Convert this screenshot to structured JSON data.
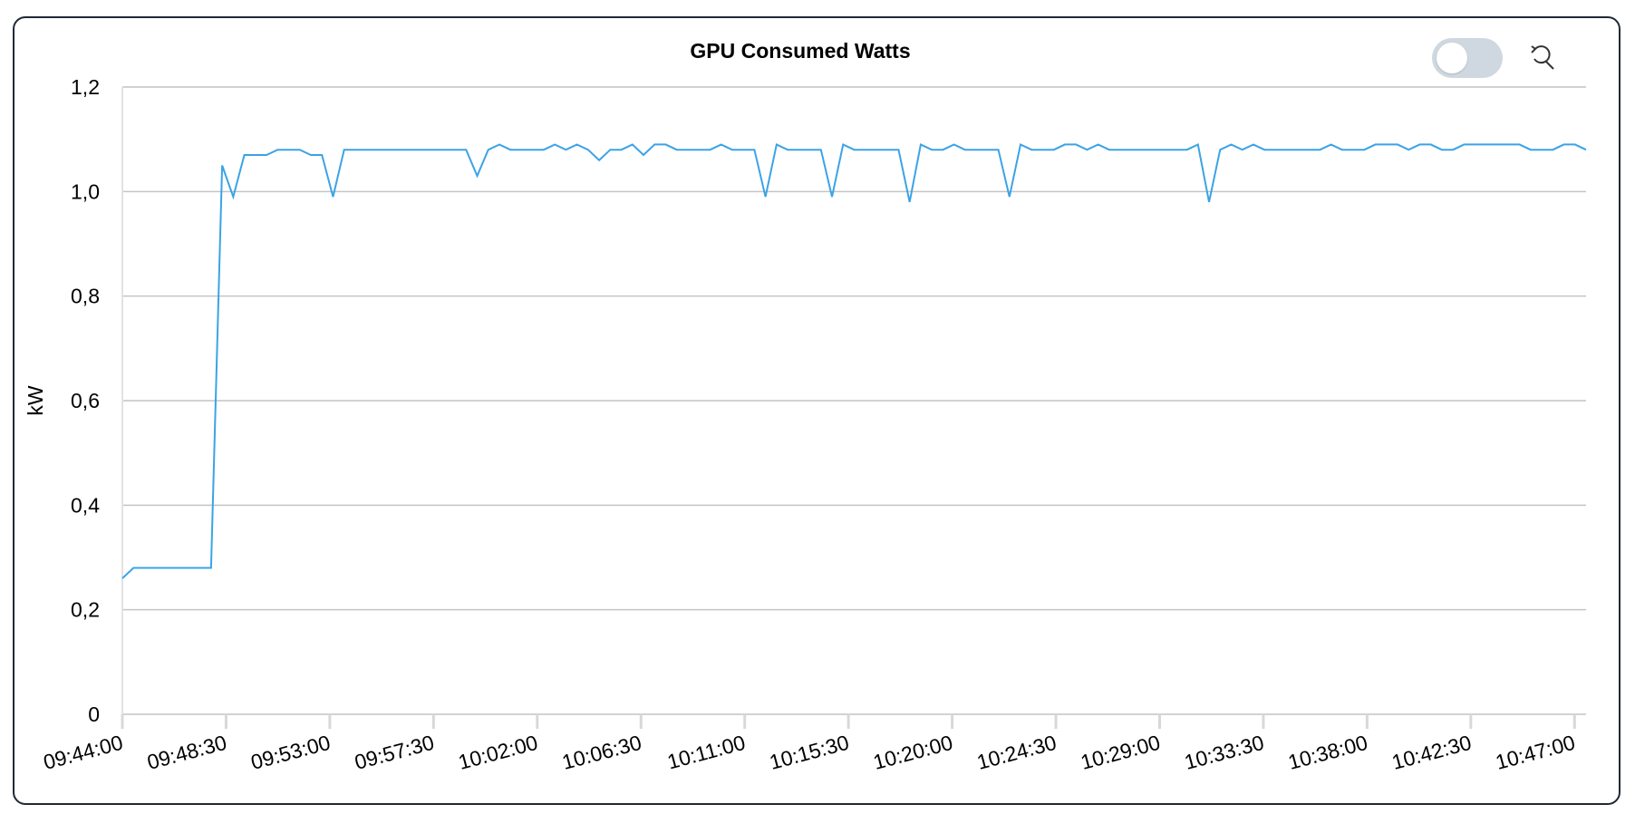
{
  "chart_data": {
    "type": "line",
    "title": "GPU Consumed Watts",
    "xlabel": "",
    "ylabel": "kW",
    "ylim": [
      0,
      1.2
    ],
    "y_ticks": [
      "0",
      "0,2",
      "0,4",
      "0,6",
      "0,8",
      "1,0",
      "1,2"
    ],
    "y_tick_values": [
      0,
      0.2,
      0.4,
      0.6,
      0.8,
      1.0,
      1.2
    ],
    "x_tick_labels": [
      "09:44:00",
      "09:48:30",
      "09:53:00",
      "09:57:30",
      "10:02:00",
      "10:06:30",
      "10:11:00",
      "10:15:30",
      "10:20:00",
      "10:24:30",
      "10:29:00",
      "10:33:30",
      "10:38:00",
      "10:42:30",
      "10:47:00"
    ],
    "x_range": [
      "09:44:00",
      "10:47:30"
    ],
    "grid": true,
    "line_color": "#3ba3e6",
    "series": [
      {
        "values": [
          0.26,
          0.28,
          0.28,
          0.28,
          0.28,
          0.28,
          0.28,
          0.28,
          0.28,
          1.05,
          0.99,
          1.07,
          1.07,
          1.07,
          1.08,
          1.08,
          1.08,
          1.07,
          1.07,
          0.99,
          1.08,
          1.08,
          1.08,
          1.08,
          1.08,
          1.08,
          1.08,
          1.08,
          1.08,
          1.08,
          1.08,
          1.08,
          1.03,
          1.08,
          1.09,
          1.08,
          1.08,
          1.08,
          1.08,
          1.09,
          1.08,
          1.09,
          1.08,
          1.06,
          1.08,
          1.08,
          1.09,
          1.07,
          1.09,
          1.09,
          1.08,
          1.08,
          1.08,
          1.08,
          1.09,
          1.08,
          1.08,
          1.08,
          0.99,
          1.09,
          1.08,
          1.08,
          1.08,
          1.08,
          0.99,
          1.09,
          1.08,
          1.08,
          1.08,
          1.08,
          1.08,
          0.98,
          1.09,
          1.08,
          1.08,
          1.09,
          1.08,
          1.08,
          1.08,
          1.08,
          0.99,
          1.09,
          1.08,
          1.08,
          1.08,
          1.09,
          1.09,
          1.08,
          1.09,
          1.08,
          1.08,
          1.08,
          1.08,
          1.08,
          1.08,
          1.08,
          1.08,
          1.09,
          0.98,
          1.08,
          1.09,
          1.08,
          1.09,
          1.08,
          1.08,
          1.08,
          1.08,
          1.08,
          1.08,
          1.09,
          1.08,
          1.08,
          1.08,
          1.09,
          1.09,
          1.09,
          1.08,
          1.09,
          1.09,
          1.08,
          1.08,
          1.09,
          1.09,
          1.09,
          1.09,
          1.09,
          1.09,
          1.08,
          1.08,
          1.08,
          1.09,
          1.09,
          1.08
        ]
      }
    ]
  },
  "controls": {
    "toggle_state": "off",
    "reset_icon": "zoom-reset-icon"
  }
}
